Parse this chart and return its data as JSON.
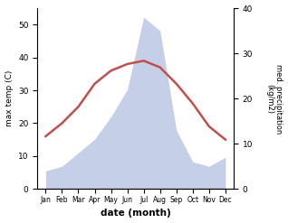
{
  "months": [
    "Jan",
    "Feb",
    "Mar",
    "Apr",
    "May",
    "Jun",
    "Jul",
    "Aug",
    "Sep",
    "Oct",
    "Nov",
    "Dec"
  ],
  "month_positions": [
    1,
    2,
    3,
    4,
    5,
    6,
    7,
    8,
    9,
    10,
    11,
    12
  ],
  "temperature": [
    16,
    20,
    25,
    32,
    36,
    38,
    39,
    37,
    32,
    26,
    19,
    15
  ],
  "precipitation": [
    4,
    5,
    8,
    11,
    16,
    22,
    38,
    35,
    13,
    6,
    5,
    7
  ],
  "temp_color": "#c0504d",
  "precip_fill_color": "#c5cfe8",
  "xlabel": "date (month)",
  "ylabel_left": "max temp (C)",
  "ylabel_right": "med. precipitation\n(kg/m2)",
  "ylim_left": [
    0,
    55
  ],
  "ylim_right": [
    0,
    40
  ],
  "yticks_left": [
    0,
    10,
    20,
    30,
    40,
    50
  ],
  "yticks_right": [
    0,
    10,
    20,
    30,
    40
  ],
  "bg_color": "#ffffff",
  "line_width": 1.8
}
